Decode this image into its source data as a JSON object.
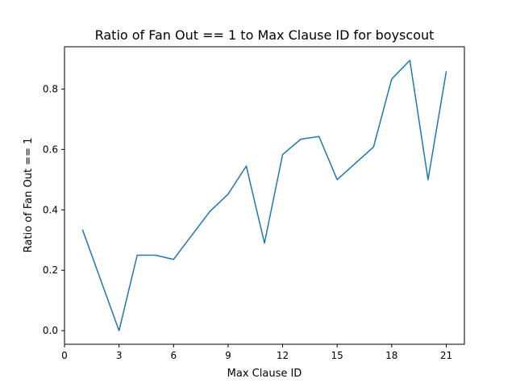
{
  "chart_data": {
    "type": "line",
    "title": "Ratio of Fan Out == 1 to Max Clause ID for boyscout",
    "xlabel": "Max Clause ID",
    "ylabel": "Ratio of Fan Out == 1",
    "xlim": [
      0,
      22
    ],
    "ylim": [
      -0.045,
      0.94
    ],
    "xticks": [
      0,
      3,
      6,
      9,
      12,
      15,
      18,
      21
    ],
    "xtick_labels": [
      "0",
      "3",
      "6",
      "9",
      "12",
      "15",
      "18",
      "21"
    ],
    "yticks": [
      0.0,
      0.2,
      0.4,
      0.6,
      0.8
    ],
    "ytick_labels": [
      "0.0",
      "0.2",
      "0.4",
      "0.6",
      "0.8"
    ],
    "grid": false,
    "series": [
      {
        "color": "#1f77b4",
        "x": [
          1,
          3,
          4,
          5,
          6,
          8,
          9,
          10,
          11,
          12,
          13,
          14,
          15,
          17,
          18,
          19,
          20,
          21
        ],
        "y": [
          0.333,
          0.0,
          0.25,
          0.25,
          0.236,
          0.395,
          0.452,
          0.545,
          0.29,
          0.583,
          0.634,
          0.643,
          0.5,
          0.608,
          0.833,
          0.895,
          0.5,
          0.857
        ]
      }
    ]
  }
}
